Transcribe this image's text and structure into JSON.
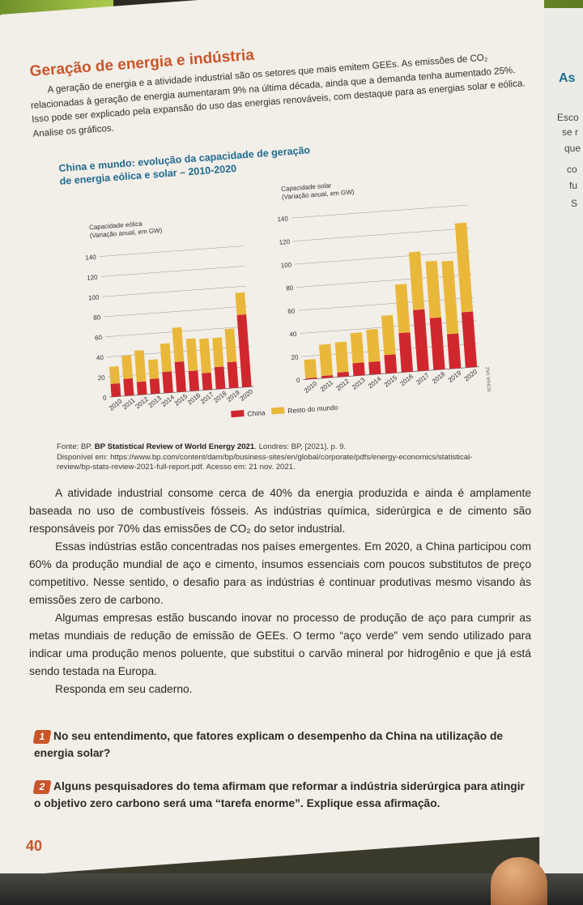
{
  "section_title": "Geração de energia e indústria",
  "intro": "A geração de energia e a atividade industrial são os setores que mais emitem GEEs. As emissões de CO₂ relacionadas à geração de energia aumentaram 9% na última década, ainda que a demanda tenha aumentado 25%. Isso pode ser explicado pela expansão do uso das energias renováveis, com destaque para as energias solar e eólica. Analise os gráficos.",
  "side": {
    "heading": "As",
    "lines": [
      "Esco",
      "se r",
      "que",
      "co",
      "fu",
      "S"
    ]
  },
  "chart_title_1": "China e mundo: evolução da capacidade de geração",
  "chart_title_2": "de energia eólica e solar – 2010-2020",
  "credit": "SONIA VAZ",
  "chart_data": [
    {
      "type": "bar",
      "stacked": true,
      "title": "Capacidade eólica",
      "ylabel": "(Variação anual, em GW)",
      "ylim": [
        0,
        140
      ],
      "yticks": [
        0,
        20,
        40,
        60,
        80,
        100,
        120,
        140
      ],
      "categories": [
        "2010",
        "2011",
        "2012",
        "2013",
        "2014",
        "2015",
        "2016",
        "2017",
        "2018",
        "2019",
        "2020"
      ],
      "series": [
        {
          "name": "China",
          "color": "#d0272f",
          "values": [
            13,
            17,
            13,
            15,
            21,
            30,
            20,
            17,
            22,
            26,
            72
          ]
        },
        {
          "name": "Resto do mundo",
          "color": "#e9b83a",
          "values": [
            17,
            23,
            31,
            19,
            28,
            34,
            32,
            34,
            29,
            33,
            22
          ]
        }
      ]
    },
    {
      "type": "bar",
      "stacked": true,
      "title": "Capacidade solar",
      "ylabel": "(Variação anual, em GW)",
      "ylim": [
        0,
        140
      ],
      "yticks": [
        0,
        20,
        40,
        60,
        80,
        100,
        120,
        140
      ],
      "categories": [
        "2010",
        "2011",
        "2012",
        "2013",
        "2014",
        "2015",
        "2016",
        "2017",
        "2018",
        "2019",
        "2020"
      ],
      "series": [
        {
          "name": "China",
          "color": "#d0272f",
          "values": [
            1,
            2,
            4,
            11,
            11,
            16,
            34,
            53,
            45,
            30,
            48
          ]
        },
        {
          "name": "Resto do mundo",
          "color": "#e9b83a",
          "values": [
            16,
            27,
            26,
            26,
            28,
            34,
            42,
            50,
            49,
            63,
            77
          ]
        }
      ]
    }
  ],
  "legend": [
    "China",
    "Resto do mundo"
  ],
  "source_label": "Fonte: BP.",
  "source_title": "BP Statistical Review of World Energy 2021",
  "source_rest": ". Londres: BP, [2021]. p. 9.",
  "source_url": "Disponível em: https://www.bp.com/content/dam/bp/business-sites/en/global/corporate/pdfs/energy-economics/statistical-review/bp-stats-review-2021-full-report.pdf. Acesso em: 21 nov. 2021.",
  "paragraphs": [
    "A atividade industrial consome cerca de 40% da energia produzida e ainda é amplamente baseada no uso de combustíveis fósseis. As indústrias química, siderúrgica e de cimento são responsáveis por 70% das emissões de CO₂ do setor industrial.",
    "Essas indústrias estão concentradas nos países emergentes. Em 2020, a China participou com 60% da produção mundial de aço e cimento, insumos essenciais com poucos substitutos de preço competitivo. Nesse sentido, o desafio para as indústrias é continuar produtivas mesmo visando às emissões zero de carbono.",
    "Algumas empresas estão buscando inovar no processo de produção de aço para cumprir as metas mundiais de redução de emissão de GEEs. O termo “aço verde” vem sendo utilizado para indicar uma produção menos poluente, que substitui o carvão mineral por hidrogênio e que já está sendo testada na Europa.",
    "Responda em seu caderno."
  ],
  "questions": [
    {
      "num": "1",
      "text": "No seu entendimento, que fatores explicam o desempenho da China na utilização de energia solar?"
    },
    {
      "num": "2",
      "text": "Alguns pesquisadores do tema afirmam que reformar a indústria siderúrgica para atingir o objetivo zero carbono será uma “tarefa enorme”. Explique essa afirmação."
    }
  ],
  "page_number": "40"
}
